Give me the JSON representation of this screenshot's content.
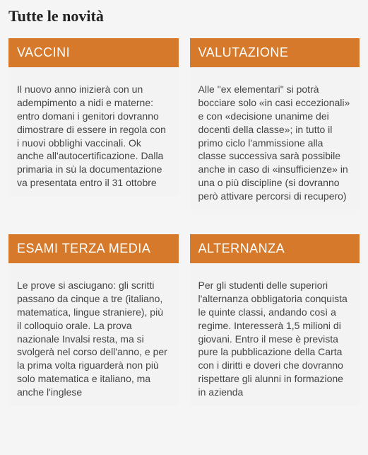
{
  "page": {
    "title": "Tutte le novità"
  },
  "colors": {
    "header_bg": "#d6792b",
    "header_text": "#ffffff",
    "body_bg": "#f3f3f3",
    "page_bg": "#f5f5f5",
    "title_color": "#222222",
    "body_text": "#444444"
  },
  "cards": [
    {
      "header": "VACCINI",
      "body": "Il nuovo anno inizierà con un adempimento a nidi e materne: entro domani i genitori dovranno dimostrare di essere in regola con i nuovi obblighi vaccinali. Ok anche all'autocertificazione. Dalla primaria in sù la documentazione va presentata entro il 31 ottobre"
    },
    {
      "header": "VALUTAZIONE",
      "body": "Alle \"ex elementari\" si potrà bocciare solo «in casi eccezionali» e con «decisione unanime dei docenti della classe»; in tutto il primo ciclo l'ammissione alla classe successiva sarà possibile anche in caso di «insufficienze» in una o più discipline (si dovranno però attivare percorsi di recupero)"
    },
    {
      "header": "ESAMI TERZA MEDIA",
      "body": "Le prove si asciugano: gli scritti passano da cinque a tre (italiano, matematica, lingue straniere), più il colloquio orale. La prova nazionale Invalsi resta, ma si svolgerà nel corso dell'anno, e per la prima volta riguarderà non più solo matematica e italiano, ma anche l'inglese"
    },
    {
      "header": "ALTERNANZA",
      "body": "Per gli studenti delle superiori l'alternanza obbligatoria conquista le quinte classi, andando così a regime. Interesserà 1,5 milioni di giovani. Entro il mese è prevista pure la pubblicazione della Carta con i diritti e doveri che dovranno rispettare gli alunni in formazione in azienda"
    }
  ]
}
